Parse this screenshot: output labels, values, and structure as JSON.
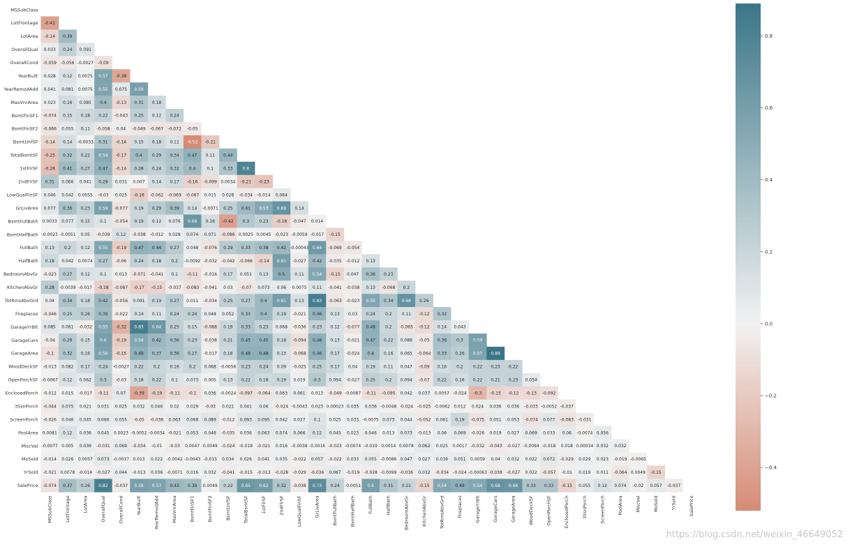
{
  "chart_data": {
    "type": "heatmap",
    "title": "",
    "variables": [
      "MSSubClass",
      "LotFrontage",
      "LotArea",
      "OverallQual",
      "OverallCond",
      "YearBuilt",
      "YearRemodAdd",
      "MasVnrArea",
      "BsmtFinSF1",
      "BsmtFinSF2",
      "BsmtUnfSF",
      "TotalBsmtSF",
      "1stFlrSF",
      "2ndFlrSF",
      "LowQualFinSF",
      "GrLivArea",
      "BsmtFullBath",
      "BsmtHalfBath",
      "FullBath",
      "HalfBath",
      "BedroomAbvGr",
      "KitchenAbvGr",
      "TotRmsAbvGrd",
      "Fireplaces",
      "GarageYrBlt",
      "GarageCars",
      "GarageArea",
      "WoodDeckSF",
      "OpenPorchSF",
      "EnclosedPorch",
      "3SsnPorch",
      "ScreenPorch",
      "PoolArea",
      "MiscVal",
      "MoSold",
      "YrSold",
      "SalePrice"
    ],
    "lower_triangle_values": [
      [],
      [
        "-0.41"
      ],
      [
        "-0.14",
        "0.39"
      ],
      [
        "0.033",
        "0.24",
        "0.091"
      ],
      [
        "-0.059",
        "-0.056",
        "-0.0027",
        "-0.09"
      ],
      [
        "0.028",
        "0.12",
        "0.0075",
        "0.57",
        "-0.38"
      ],
      [
        "0.041",
        "0.081",
        "0.0075",
        "0.55",
        "0.075",
        "0.59"
      ],
      [
        "0.023",
        "0.16",
        "0.085",
        "0.4",
        "-0.13",
        "0.31",
        "0.18"
      ],
      [
        "-0.074",
        "0.15",
        "0.18",
        "0.22",
        "-0.043",
        "0.25",
        "0.12",
        "0.24"
      ],
      [
        "-0.066",
        "0.055",
        "0.11",
        "-0.058",
        "0.04",
        "-0.049",
        "-0.067",
        "-0.072",
        "-0.05"
      ],
      [
        "-0.14",
        "0.14",
        "-0.0033",
        "0.31",
        "-0.14",
        "0.15",
        "0.18",
        "0.11",
        "-0.52",
        "-0.21"
      ],
      [
        "-0.25",
        "0.32",
        "0.22",
        "0.54",
        "-0.17",
        "0.4",
        "0.29",
        "0.34",
        "0.47",
        "0.11",
        "0.44"
      ],
      [
        "-0.26",
        "0.41",
        "0.27",
        "0.47",
        "-0.14",
        "0.28",
        "0.24",
        "0.32",
        "0.4",
        "0.1",
        "0.33",
        "0.8"
      ],
      [
        "0.31",
        "0.066",
        "0.041",
        "0.29",
        "0.031",
        "0.007",
        "0.14",
        "0.17",
        "-0.16",
        "-0.099",
        "0.0034",
        "-0.21",
        "-0.23"
      ],
      [
        "0.046",
        "0.042",
        "0.0055",
        "-0.03",
        "0.025",
        "-0.18",
        "-0.062",
        "-0.069",
        "-0.067",
        "0.015",
        "0.028",
        "-0.034",
        "-0.014",
        "0.064"
      ],
      [
        "0.077",
        "0.36",
        "0.23",
        "0.59",
        "-0.077",
        "0.19",
        "0.29",
        "0.39",
        "0.14",
        "-0.0071",
        "0.25",
        "0.41",
        "0.53",
        "0.69",
        "0.14"
      ],
      [
        "0.0033",
        "0.077",
        "0.15",
        "0.1",
        "-0.054",
        "0.19",
        "0.12",
        "0.076",
        "0.66",
        "0.16",
        "-0.42",
        "0.3",
        "0.23",
        "-0.18",
        "-0.047",
        "0.014"
      ],
      [
        "-0.0023",
        "-0.0051",
        "0.05",
        "-0.039",
        "0.12",
        "-0.038",
        "-0.012",
        "0.028",
        "0.074",
        "0.071",
        "-0.096",
        "0.0025",
        "0.0045",
        "-0.023",
        "-0.0059",
        "-0.017",
        "-0.15"
      ],
      [
        "0.13",
        "0.2",
        "0.12",
        "0.55",
        "-0.19",
        "0.47",
        "0.44",
        "0.27",
        "0.048",
        "-0.076",
        "0.29",
        "0.33",
        "0.38",
        "0.42",
        "-0.00043",
        "0.64",
        "-0.069",
        "-0.054"
      ],
      [
        "0.18",
        "0.042",
        "0.0074",
        "0.27",
        "-0.06",
        "0.24",
        "0.18",
        "0.2",
        "-0.0092",
        "-0.032",
        "-0.042",
        "-0.066",
        "-0.14",
        "0.61",
        "-0.027",
        "0.42",
        "-0.035",
        "-0.012",
        "0.13"
      ],
      [
        "-0.023",
        "0.27",
        "0.12",
        "0.1",
        "0.013",
        "-0.071",
        "-0.041",
        "0.1",
        "-0.11",
        "-0.016",
        "0.17",
        "0.051",
        "0.13",
        "0.5",
        "0.11",
        "0.54",
        "-0.15",
        "0.047",
        "0.36",
        "0.23"
      ],
      [
        "0.28",
        "-0.0039",
        "-0.017",
        "-0.18",
        "-0.087",
        "-0.17",
        "-0.15",
        "-0.037",
        "-0.083",
        "-0.041",
        "0.03",
        "-0.07",
        "0.073",
        "0.06",
        "0.0075",
        "0.11",
        "-0.041",
        "-0.038",
        "0.13",
        "-0.068",
        "0.2"
      ],
      [
        "0.04",
        "0.34",
        "0.18",
        "0.42",
        "-0.056",
        "0.091",
        "0.19",
        "0.27",
        "0.011",
        "-0.034",
        "0.25",
        "0.27",
        "0.4",
        "0.61",
        "0.13",
        "0.83",
        "-0.063",
        "-0.023",
        "0.55",
        "0.34",
        "0.68",
        "0.26"
      ],
      [
        "-0.046",
        "0.25",
        "0.26",
        "0.39",
        "-0.022",
        "0.14",
        "0.11",
        "0.24",
        "0.24",
        "0.048",
        "0.052",
        "0.33",
        "0.4",
        "0.19",
        "-0.021",
        "0.46",
        "0.13",
        "0.03",
        "0.24",
        "0.2",
        "0.11",
        "-0.12",
        "0.32"
      ],
      [
        "0.085",
        "0.061",
        "-0.032",
        "0.55",
        "-0.32",
        "0.83",
        "0.64",
        "0.25",
        "0.15",
        "-0.088",
        "0.19",
        "0.33",
        "0.23",
        "0.068",
        "-0.036",
        "0.23",
        "0.12",
        "-0.077",
        "0.48",
        "0.2",
        "-0.065",
        "-0.12",
        "0.14",
        "0.043"
      ],
      [
        "-0.04",
        "0.29",
        "0.15",
        "0.6",
        "-0.19",
        "0.54",
        "0.42",
        "0.36",
        "0.23",
        "-0.038",
        "0.21",
        "0.45",
        "0.45",
        "0.18",
        "-0.094",
        "0.48",
        "0.13",
        "-0.021",
        "0.47",
        "0.22",
        "0.086",
        "-0.05",
        "0.36",
        "0.3",
        "0.59"
      ],
      [
        "-0.1",
        "0.32",
        "0.16",
        "0.56",
        "-0.15",
        "0.48",
        "0.37",
        "0.36",
        "0.27",
        "-0.017",
        "0.18",
        "0.48",
        "0.48",
        "0.13",
        "-0.068",
        "0.46",
        "0.17",
        "-0.024",
        "0.4",
        "0.16",
        "0.065",
        "-0.064",
        "0.33",
        "0.26",
        "0.57",
        "0.89"
      ],
      [
        "-0.013",
        "0.082",
        "0.17",
        "0.24",
        "-0.0027",
        "0.22",
        "0.2",
        "0.16",
        "0.2",
        "0.068",
        "-0.0056",
        "0.23",
        "0.24",
        "0.09",
        "-0.025",
        "0.25",
        "0.17",
        "0.04",
        "0.19",
        "0.11",
        "0.047",
        "-0.09",
        "0.16",
        "0.2",
        "0.22",
        "0.23",
        "0.22"
      ],
      [
        "-0.0067",
        "0.12",
        "0.062",
        "0.3",
        "-0.03",
        "0.18",
        "0.22",
        "0.1",
        "0.073",
        "0.005",
        "0.13",
        "0.22",
        "0.18",
        "0.19",
        "0.019",
        "0.3",
        "0.094",
        "-0.027",
        "0.25",
        "0.2",
        "0.094",
        "-0.07",
        "0.22",
        "0.16",
        "0.22",
        "0.21",
        "0.23",
        "0.054"
      ],
      [
        "-0.012",
        "0.015",
        "-0.017",
        "-0.11",
        "0.07",
        "-0.39",
        "-0.19",
        "-0.11",
        "-0.1",
        "0.036",
        "-0.0024",
        "-0.097",
        "-0.064",
        "0.063",
        "0.061",
        "0.013",
        "-0.049",
        "-0.0087",
        "-0.11",
        "-0.095",
        "0.042",
        "0.037",
        "0.0057",
        "-0.024",
        "-0.3",
        "-0.15",
        "-0.12",
        "-0.13",
        "-0.092"
      ],
      [
        "-0.044",
        "0.075",
        "0.021",
        "0.031",
        "0.025",
        "0.032",
        "0.046",
        "0.02",
        "0.029",
        "-0.03",
        "0.021",
        "0.041",
        "0.06",
        "-0.024",
        "-0.0043",
        "0.023",
        "0.00023",
        "0.035",
        "0.036",
        "-0.0048",
        "-0.024",
        "-0.025",
        "-0.0062",
        "0.012",
        "0.024",
        "0.036",
        "0.036",
        "-0.033",
        "-0.0052",
        "-0.037"
      ],
      [
        "-0.026",
        "0.046",
        "0.045",
        "0.066",
        "0.055",
        "-0.05",
        "-0.038",
        "0.063",
        "0.068",
        "0.089",
        "-0.012",
        "0.093",
        "0.095",
        "0.042",
        "0.027",
        "0.1",
        "0.025",
        "0.033",
        "-0.0075",
        "0.073",
        "0.044",
        "-0.052",
        "0.061",
        "0.19",
        "-0.075",
        "0.051",
        "0.053",
        "-0.074",
        "0.077",
        "-0.083",
        "-0.031"
      ],
      [
        "0.0081",
        "0.12",
        "0.036",
        "0.045",
        "0.0023",
        "-0.0052",
        "-0.0034",
        "-0.021",
        "0.053",
        "0.046",
        "-0.035",
        "0.036",
        "0.063",
        "0.074",
        "0.066",
        "0.12",
        "0.045",
        "0.023",
        "0.046",
        "0.013",
        "0.073",
        "-0.013",
        "0.06",
        "0.069",
        "-0.026",
        "0.019",
        "0.027",
        "0.069",
        "0.033",
        "0.06",
        "-0.0074",
        "0.056"
      ],
      [
        "-0.0077",
        "0.005",
        "0.039",
        "-0.031",
        "0.069",
        "-0.034",
        "-0.01",
        "-0.03",
        "0.0047",
        "0.0049",
        "-0.024",
        "-0.019",
        "-0.021",
        "0.016",
        "-0.0038",
        "-0.0016",
        "-0.023",
        "-0.0074",
        "-0.019",
        "0.0014",
        "0.0078",
        "0.062",
        "0.025",
        "0.0017",
        "-0.032",
        "-0.043",
        "-0.027",
        "-0.0094",
        "-0.018",
        "0.018",
        "0.00034",
        "0.032",
        "0.032"
      ],
      [
        "-0.014",
        "0.026",
        "0.0057",
        "0.073",
        "-0.0037",
        "0.013",
        "0.022",
        "-0.0042",
        "-0.0043",
        "-0.015",
        "0.034",
        "0.026",
        "0.041",
        "0.035",
        "-0.022",
        "0.057",
        "-0.022",
        "0.033",
        "0.055",
        "-0.0086",
        "0.047",
        "0.027",
        "0.039",
        "0.051",
        "0.0059",
        "0.04",
        "0.032",
        "0.022",
        "0.072",
        "-0.029",
        "0.029",
        "0.023",
        "-0.019",
        "-0.0065"
      ],
      [
        "-0.021",
        "0.0078",
        "-0.014",
        "-0.027",
        "0.044",
        "-0.013",
        "0.036",
        "-0.0071",
        "0.016",
        "0.032",
        "-0.041",
        "-0.015",
        "-0.013",
        "-0.028",
        "-0.029",
        "-0.036",
        "0.067",
        "-0.019",
        "-0.028",
        "-0.0099",
        "-0.036",
        "0.032",
        "-0.034",
        "-0.024",
        "-0.00063",
        "-0.038",
        "-0.027",
        "0.022",
        "-0.057",
        "-0.01",
        "0.019",
        "0.011",
        "-0.064",
        "0.0049",
        "-0.15"
      ],
      [
        "-0.074",
        "0.37",
        "0.26",
        "0.82",
        "-0.037",
        "0.59",
        "0.57",
        "0.43",
        "0.39",
        "0.0049",
        "0.22",
        "0.65",
        "0.62",
        "0.32",
        "-0.038",
        "0.73",
        "0.24",
        "-0.0051",
        "0.6",
        "0.31",
        "0.21",
        "-0.15",
        "0.54",
        "0.49",
        "0.54",
        "0.68",
        "0.66",
        "0.33",
        "0.33",
        "-0.15",
        "0.055",
        "0.12",
        "0.074",
        "-0.02",
        "0.057",
        "-0.037"
      ]
    ],
    "colorbar": {
      "ticks": [
        "0.8",
        "0.6",
        "0.4",
        "0.2",
        "0.0",
        "−0.2",
        "−0.4"
      ],
      "min": -0.52,
      "max": 0.89,
      "center": 0,
      "low_color": "#d58b75",
      "mid_color": "#f2f2f2",
      "high_color": "#3b7688"
    },
    "grid": false,
    "legend_position": "right"
  },
  "watermark": "https://blog.csdn.net/weixin_46649052"
}
